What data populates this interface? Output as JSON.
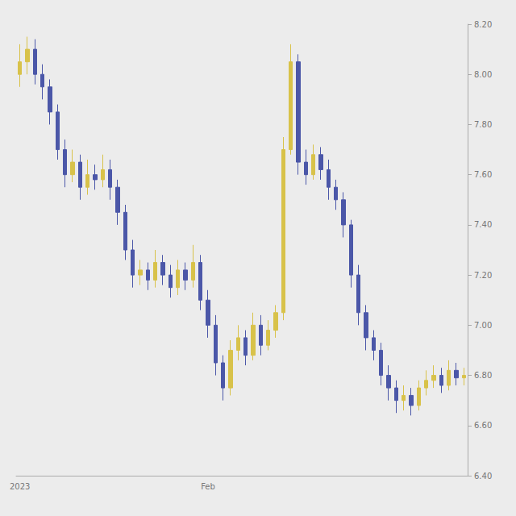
{
  "chart_data": {
    "type": "candlestick",
    "categories": [
      "2023",
      null,
      null,
      null,
      null,
      null,
      null,
      null,
      null,
      null,
      null,
      null,
      null,
      null,
      null,
      null,
      null,
      null,
      null,
      null,
      null,
      null,
      null,
      null,
      null,
      "Feb",
      null,
      null,
      null,
      null,
      null,
      null,
      null,
      null,
      null,
      null,
      null,
      null,
      null,
      null,
      null,
      null,
      null,
      null,
      null,
      null,
      null,
      null,
      null,
      null,
      null,
      null,
      null,
      null,
      null,
      null,
      null,
      null,
      null,
      null
    ],
    "values": [
      [
        8.0,
        8.05,
        7.95,
        8.12
      ],
      [
        8.05,
        8.1,
        8.0,
        8.15
      ],
      [
        8.1,
        8.0,
        7.96,
        8.14
      ],
      [
        8.0,
        7.95,
        7.9,
        8.04
      ],
      [
        7.95,
        7.85,
        7.8,
        7.98
      ],
      [
        7.85,
        7.7,
        7.66,
        7.88
      ],
      [
        7.7,
        7.6,
        7.55,
        7.74
      ],
      [
        7.6,
        7.65,
        7.57,
        7.7
      ],
      [
        7.65,
        7.55,
        7.5,
        7.68
      ],
      [
        7.55,
        7.6,
        7.52,
        7.66
      ],
      [
        7.6,
        7.58,
        7.54,
        7.64
      ],
      [
        7.58,
        7.62,
        7.55,
        7.68
      ],
      [
        7.62,
        7.55,
        7.5,
        7.66
      ],
      [
        7.55,
        7.45,
        7.4,
        7.58
      ],
      [
        7.45,
        7.3,
        7.26,
        7.48
      ],
      [
        7.3,
        7.2,
        7.15,
        7.34
      ],
      [
        7.2,
        7.22,
        7.16,
        7.26
      ],
      [
        7.22,
        7.18,
        7.14,
        7.25
      ],
      [
        7.18,
        7.25,
        7.15,
        7.3
      ],
      [
        7.25,
        7.2,
        7.16,
        7.28
      ],
      [
        7.2,
        7.15,
        7.11,
        7.24
      ],
      [
        7.15,
        7.22,
        7.12,
        7.26
      ],
      [
        7.22,
        7.18,
        7.14,
        7.25
      ],
      [
        7.18,
        7.25,
        7.15,
        7.32
      ],
      [
        7.25,
        7.1,
        7.06,
        7.28
      ],
      [
        7.1,
        7.0,
        6.95,
        7.14
      ],
      [
        7.0,
        6.85,
        6.8,
        7.04
      ],
      [
        6.85,
        6.75,
        6.7,
        6.88
      ],
      [
        6.75,
        6.9,
        6.72,
        6.94
      ],
      [
        6.9,
        6.95,
        6.86,
        7.0
      ],
      [
        6.95,
        6.88,
        6.84,
        6.98
      ],
      [
        6.88,
        7.0,
        6.86,
        7.05
      ],
      [
        7.0,
        6.92,
        6.88,
        7.04
      ],
      [
        6.92,
        6.98,
        6.9,
        7.02
      ],
      [
        6.98,
        7.05,
        6.95,
        7.08
      ],
      [
        7.05,
        7.7,
        7.02,
        7.75
      ],
      [
        7.7,
        8.05,
        7.68,
        8.12
      ],
      [
        8.05,
        7.65,
        7.6,
        8.08
      ],
      [
        7.65,
        7.6,
        7.56,
        7.7
      ],
      [
        7.6,
        7.68,
        7.58,
        7.72
      ],
      [
        7.68,
        7.62,
        7.58,
        7.71
      ],
      [
        7.62,
        7.55,
        7.5,
        7.66
      ],
      [
        7.55,
        7.5,
        7.46,
        7.58
      ],
      [
        7.5,
        7.4,
        7.35,
        7.53
      ],
      [
        7.4,
        7.2,
        7.15,
        7.42
      ],
      [
        7.2,
        7.05,
        7.0,
        7.24
      ],
      [
        7.05,
        6.95,
        6.9,
        7.08
      ],
      [
        6.95,
        6.9,
        6.86,
        6.98
      ],
      [
        6.9,
        6.8,
        6.76,
        6.93
      ],
      [
        6.8,
        6.75,
        6.7,
        6.84
      ],
      [
        6.75,
        6.7,
        6.65,
        6.78
      ],
      [
        6.7,
        6.72,
        6.66,
        6.76
      ],
      [
        6.72,
        6.68,
        6.64,
        6.75
      ],
      [
        6.68,
        6.75,
        6.66,
        6.78
      ],
      [
        6.75,
        6.78,
        6.72,
        6.82
      ],
      [
        6.78,
        6.8,
        6.75,
        6.84
      ],
      [
        6.8,
        6.76,
        6.73,
        6.83
      ],
      [
        6.76,
        6.82,
        6.74,
        6.86
      ],
      [
        6.82,
        6.79,
        6.76,
        6.85
      ],
      [
        6.79,
        6.8,
        6.76,
        6.83
      ]
    ],
    "colors": [
      "#d8c24a",
      "#d8c24a",
      "#4b57a8",
      "#4b57a8",
      "#4b57a8",
      "#4b57a8",
      "#4b57a8",
      "#d8c24a",
      "#4b57a8",
      "#d8c24a",
      "#4b57a8",
      "#d8c24a",
      "#4b57a8",
      "#4b57a8",
      "#4b57a8",
      "#4b57a8",
      "#d8c24a",
      "#4b57a8",
      "#d8c24a",
      "#4b57a8",
      "#4b57a8",
      "#d8c24a",
      "#4b57a8",
      "#d8c24a",
      "#4b57a8",
      "#4b57a8",
      "#4b57a8",
      "#4b57a8",
      "#d8c24a",
      "#d8c24a",
      "#4b57a8",
      "#d8c24a",
      "#4b57a8",
      "#d8c24a",
      "#d8c24a",
      "#d8c24a",
      "#d8c24a",
      "#4b57a8",
      "#4b57a8",
      "#d8c24a",
      "#4b57a8",
      "#4b57a8",
      "#4b57a8",
      "#4b57a8",
      "#4b57a8",
      "#4b57a8",
      "#4b57a8",
      "#4b57a8",
      "#4b57a8",
      "#4b57a8",
      "#4b57a8",
      "#d8c24a",
      "#4b57a8",
      "#d8c24a",
      "#d8c24a",
      "#d8c24a",
      "#4b57a8",
      "#d8c24a",
      "#4b57a8",
      "#d8c24a"
    ],
    "ylim": [
      6.4,
      8.2
    ],
    "yticks": [
      {
        "value": 6.4,
        "label": "6.40"
      },
      {
        "value": 6.6,
        "label": "6.60"
      },
      {
        "value": 6.8,
        "label": "6.80"
      },
      {
        "value": 7.0,
        "label": "7.00"
      },
      {
        "value": 7.2,
        "label": "7.20"
      },
      {
        "value": 7.4,
        "label": "7.40"
      },
      {
        "value": 7.6,
        "label": "7.60"
      },
      {
        "value": 7.8,
        "label": "7.80"
      },
      {
        "value": 8.0,
        "label": "8.00"
      },
      {
        "value": 8.2,
        "label": "8.20"
      }
    ],
    "grid": false
  }
}
